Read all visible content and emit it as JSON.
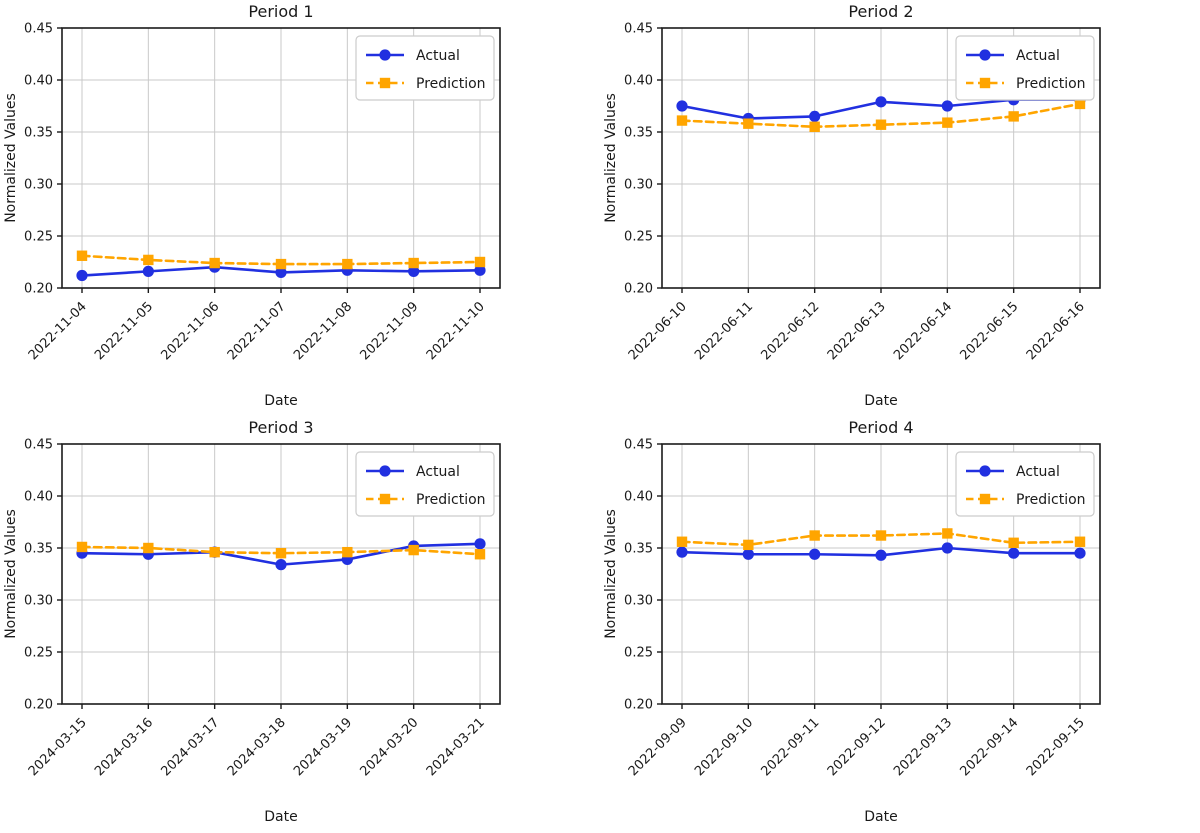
{
  "figure": {
    "background": "#ffffff"
  },
  "colors": {
    "actual": "#2130e0",
    "prediction": "#ffa500",
    "grid": "#c9c9c9",
    "spine": "#1a1a1a",
    "tick_text": "#1a1a1a",
    "title_text": "#1a1a1a",
    "legend_border": "#cccccc",
    "legend_bg": "#ffffff"
  },
  "legend": {
    "actual_label": "Actual",
    "prediction_label": "Prediction",
    "position": "upper right"
  },
  "chart_data": [
    {
      "type": "line",
      "title": "Period 1",
      "xlabel": "Date",
      "ylabel": "Normalized Values",
      "ylim": [
        0.2,
        0.45
      ],
      "yticks": [
        0.2,
        0.25,
        0.3,
        0.35,
        0.4,
        0.45
      ],
      "grid": true,
      "legend_position": "upper right",
      "categories": [
        "2022-11-04",
        "2022-11-05",
        "2022-11-06",
        "2022-11-07",
        "2022-11-08",
        "2022-11-09",
        "2022-11-10"
      ],
      "series": [
        {
          "name": "Actual",
          "color_key": "actual",
          "line_style": "solid",
          "marker": "circle",
          "values": [
            0.212,
            0.216,
            0.22,
            0.215,
            0.217,
            0.216,
            0.217
          ]
        },
        {
          "name": "Prediction",
          "color_key": "prediction",
          "line_style": "dashed",
          "marker": "square",
          "values": [
            0.231,
            0.227,
            0.224,
            0.223,
            0.223,
            0.224,
            0.225
          ]
        }
      ]
    },
    {
      "type": "line",
      "title": "Period 2",
      "xlabel": "Date",
      "ylabel": "Normalized Values",
      "ylim": [
        0.2,
        0.45
      ],
      "yticks": [
        0.2,
        0.25,
        0.3,
        0.35,
        0.4,
        0.45
      ],
      "grid": true,
      "legend_position": "upper right",
      "categories": [
        "2022-06-10",
        "2022-06-11",
        "2022-06-12",
        "2022-06-13",
        "2022-06-14",
        "2022-06-15",
        "2022-06-16"
      ],
      "series": [
        {
          "name": "Actual",
          "color_key": "actual",
          "line_style": "solid",
          "marker": "circle",
          "values": [
            0.375,
            0.363,
            0.365,
            0.379,
            0.375,
            0.381,
            0.381
          ]
        },
        {
          "name": "Prediction",
          "color_key": "prediction",
          "line_style": "dashed",
          "marker": "square",
          "values": [
            0.361,
            0.358,
            0.355,
            0.357,
            0.359,
            0.365,
            0.377
          ]
        }
      ]
    },
    {
      "type": "line",
      "title": "Period 3",
      "xlabel": "Date",
      "ylabel": "Normalized Values",
      "ylim": [
        0.2,
        0.45
      ],
      "yticks": [
        0.2,
        0.25,
        0.3,
        0.35,
        0.4,
        0.45
      ],
      "grid": true,
      "legend_position": "upper right",
      "categories": [
        "2024-03-15",
        "2024-03-16",
        "2024-03-17",
        "2024-03-18",
        "2024-03-19",
        "2024-03-20",
        "2024-03-21"
      ],
      "series": [
        {
          "name": "Actual",
          "color_key": "actual",
          "line_style": "solid",
          "marker": "circle",
          "values": [
            0.345,
            0.344,
            0.346,
            0.334,
            0.339,
            0.352,
            0.354
          ]
        },
        {
          "name": "Prediction",
          "color_key": "prediction",
          "line_style": "dashed",
          "marker": "square",
          "values": [
            0.351,
            0.35,
            0.346,
            0.345,
            0.346,
            0.348,
            0.344
          ]
        }
      ]
    },
    {
      "type": "line",
      "title": "Period 4",
      "xlabel": "Date",
      "ylabel": "Normalized Values",
      "ylim": [
        0.2,
        0.45
      ],
      "yticks": [
        0.2,
        0.25,
        0.3,
        0.35,
        0.4,
        0.45
      ],
      "grid": true,
      "legend_position": "upper right",
      "categories": [
        "2022-09-09",
        "2022-09-10",
        "2022-09-11",
        "2022-09-12",
        "2022-09-13",
        "2022-09-14",
        "2022-09-15"
      ],
      "series": [
        {
          "name": "Actual",
          "color_key": "actual",
          "line_style": "solid",
          "marker": "circle",
          "values": [
            0.346,
            0.344,
            0.344,
            0.343,
            0.35,
            0.345,
            0.345
          ]
        },
        {
          "name": "Prediction",
          "color_key": "prediction",
          "line_style": "dashed",
          "marker": "square",
          "values": [
            0.356,
            0.353,
            0.362,
            0.362,
            0.364,
            0.355,
            0.356
          ]
        }
      ]
    }
  ]
}
